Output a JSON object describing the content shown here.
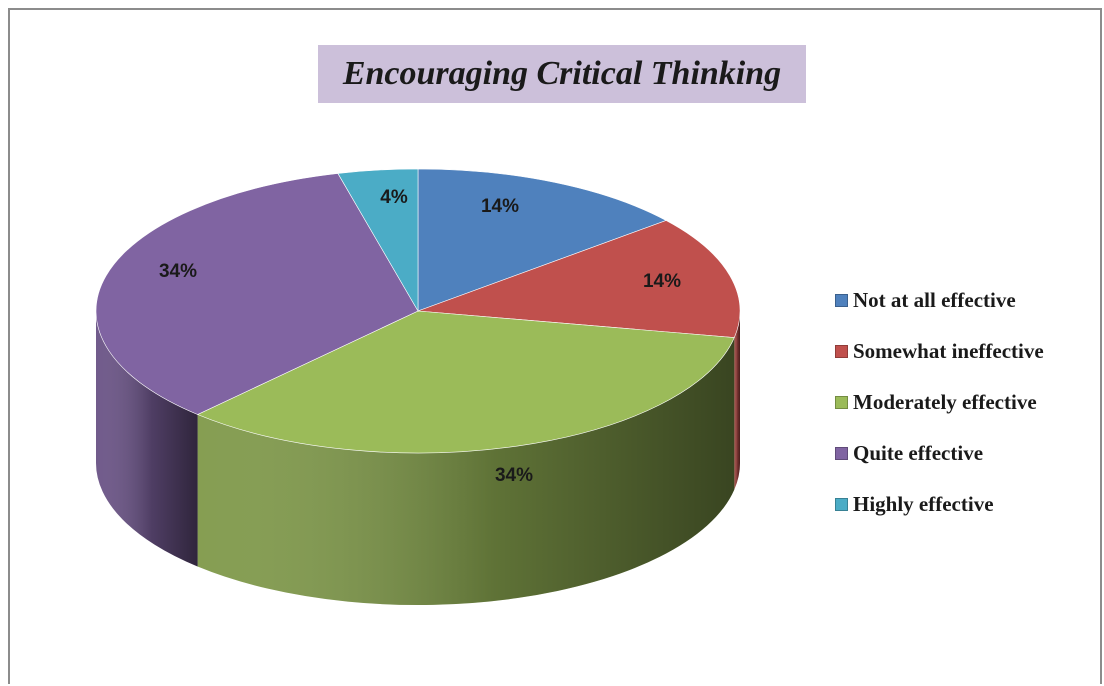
{
  "chart_data": {
    "type": "pie",
    "title": "Encouraging Critical Thinking",
    "categories": [
      "Not at all effective",
      "Somewhat ineffective",
      "Moderately effective",
      "Quite effective",
      "Highly effective"
    ],
    "values": [
      14,
      14,
      34,
      34,
      4
    ],
    "labels": [
      "14%",
      "14%",
      "34%",
      "34%",
      "4%"
    ],
    "colors": [
      "#4f81bd",
      "#c0504d",
      "#9bbb59",
      "#8064a2",
      "#4bacc6"
    ],
    "legend_position": "right",
    "style": "3d"
  }
}
